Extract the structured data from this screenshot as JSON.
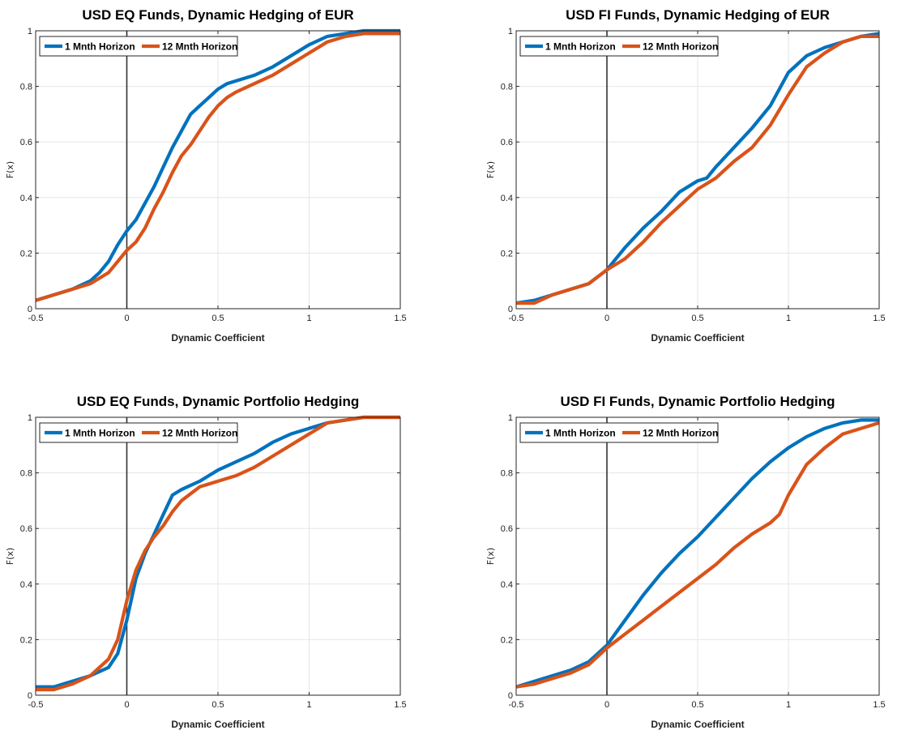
{
  "chart_data": [
    {
      "type": "line",
      "title": "USD EQ Funds, Dynamic Hedging of EUR",
      "xlabel": "Dynamic Coefficient",
      "ylabel": "F(x)",
      "xlim": [
        -0.5,
        1.5
      ],
      "ylim": [
        0,
        1
      ],
      "xticks": [
        "-0.5",
        "0",
        "0.5",
        "1",
        "1.5"
      ],
      "yticks": [
        "0",
        "0.2",
        "0.4",
        "0.6",
        "0.8",
        "1"
      ],
      "grid": true,
      "legend_position": "top-left",
      "reference_line_x": 0,
      "series": [
        {
          "name": "1 Mnth Horizon",
          "color": "#0072BD",
          "x": [
            -0.5,
            -0.4,
            -0.3,
            -0.2,
            -0.15,
            -0.1,
            -0.05,
            0,
            0.05,
            0.1,
            0.15,
            0.2,
            0.25,
            0.3,
            0.35,
            0.4,
            0.45,
            0.5,
            0.55,
            0.6,
            0.7,
            0.8,
            0.9,
            1.0,
            1.1,
            1.2,
            1.3,
            1.4,
            1.5
          ],
          "y": [
            0.03,
            0.05,
            0.07,
            0.1,
            0.13,
            0.17,
            0.23,
            0.28,
            0.32,
            0.38,
            0.44,
            0.51,
            0.58,
            0.64,
            0.7,
            0.73,
            0.76,
            0.79,
            0.81,
            0.82,
            0.84,
            0.87,
            0.91,
            0.95,
            0.98,
            0.99,
            1.0,
            1.0,
            1.0
          ]
        },
        {
          "name": "12 Mnth Horizon",
          "color": "#D95319",
          "x": [
            -0.5,
            -0.4,
            -0.3,
            -0.2,
            -0.15,
            -0.1,
            -0.05,
            0,
            0.05,
            0.1,
            0.15,
            0.2,
            0.25,
            0.3,
            0.35,
            0.4,
            0.45,
            0.5,
            0.55,
            0.6,
            0.7,
            0.8,
            0.9,
            1.0,
            1.1,
            1.2,
            1.3,
            1.4,
            1.5
          ],
          "y": [
            0.03,
            0.05,
            0.07,
            0.09,
            0.11,
            0.13,
            0.17,
            0.21,
            0.24,
            0.29,
            0.36,
            0.42,
            0.49,
            0.55,
            0.59,
            0.64,
            0.69,
            0.73,
            0.76,
            0.78,
            0.81,
            0.84,
            0.88,
            0.92,
            0.96,
            0.98,
            0.99,
            0.99,
            0.99
          ]
        }
      ]
    },
    {
      "type": "line",
      "title": "USD FI Funds, Dynamic Hedging of EUR",
      "xlabel": "Dynamic Coefficient",
      "ylabel": "F(x)",
      "xlim": [
        -0.5,
        1.5
      ],
      "ylim": [
        0,
        1
      ],
      "xticks": [
        "-0.5",
        "0",
        "0.5",
        "1",
        "1.5"
      ],
      "yticks": [
        "0",
        "0.2",
        "0.4",
        "0.6",
        "0.8",
        "1"
      ],
      "grid": true,
      "legend_position": "top-left",
      "reference_line_x": 0,
      "series": [
        {
          "name": "1 Mnth Horizon",
          "color": "#0072BD",
          "x": [
            -0.5,
            -0.4,
            -0.3,
            -0.2,
            -0.1,
            0,
            0.1,
            0.2,
            0.3,
            0.4,
            0.5,
            0.55,
            0.6,
            0.7,
            0.8,
            0.9,
            0.95,
            1.0,
            1.1,
            1.2,
            1.3,
            1.4,
            1.5
          ],
          "y": [
            0.02,
            0.03,
            0.05,
            0.07,
            0.09,
            0.14,
            0.22,
            0.29,
            0.35,
            0.42,
            0.46,
            0.47,
            0.51,
            0.58,
            0.65,
            0.73,
            0.79,
            0.85,
            0.91,
            0.94,
            0.96,
            0.98,
            0.99
          ]
        },
        {
          "name": "12 Mnth Horizon",
          "color": "#D95319",
          "x": [
            -0.5,
            -0.4,
            -0.3,
            -0.2,
            -0.1,
            0,
            0.1,
            0.2,
            0.3,
            0.4,
            0.5,
            0.6,
            0.7,
            0.8,
            0.9,
            1.0,
            1.1,
            1.2,
            1.3,
            1.4,
            1.5
          ],
          "y": [
            0.02,
            0.02,
            0.05,
            0.07,
            0.09,
            0.14,
            0.18,
            0.24,
            0.31,
            0.37,
            0.43,
            0.47,
            0.53,
            0.58,
            0.66,
            0.77,
            0.87,
            0.92,
            0.96,
            0.98,
            0.98
          ]
        }
      ]
    },
    {
      "type": "line",
      "title": "USD EQ Funds, Dynamic Portfolio Hedging",
      "xlabel": "Dynamic Coefficient",
      "ylabel": "F(x)",
      "xlim": [
        -0.5,
        1.5
      ],
      "ylim": [
        0,
        1
      ],
      "xticks": [
        "-0.5",
        "0",
        "0.5",
        "1",
        "1.5"
      ],
      "yticks": [
        "0",
        "0.2",
        "0.4",
        "0.6",
        "0.8",
        "1"
      ],
      "grid": true,
      "legend_position": "top-left",
      "reference_line_x": 0,
      "series": [
        {
          "name": "1 Mnth Horizon",
          "color": "#0072BD",
          "x": [
            -0.5,
            -0.4,
            -0.3,
            -0.2,
            -0.1,
            -0.05,
            0,
            0.05,
            0.1,
            0.15,
            0.2,
            0.25,
            0.3,
            0.4,
            0.5,
            0.6,
            0.7,
            0.8,
            0.9,
            1.0,
            1.1,
            1.2,
            1.3,
            1.4,
            1.5
          ],
          "y": [
            0.03,
            0.03,
            0.05,
            0.07,
            0.1,
            0.15,
            0.27,
            0.42,
            0.51,
            0.58,
            0.65,
            0.72,
            0.74,
            0.77,
            0.81,
            0.84,
            0.87,
            0.91,
            0.94,
            0.96,
            0.98,
            0.99,
            1.0,
            1.0,
            1.0
          ]
        },
        {
          "name": "12 Mnth Horizon",
          "color": "#D95319",
          "x": [
            -0.5,
            -0.4,
            -0.3,
            -0.2,
            -0.15,
            -0.1,
            -0.05,
            0,
            0.05,
            0.1,
            0.15,
            0.2,
            0.25,
            0.3,
            0.4,
            0.5,
            0.6,
            0.7,
            0.8,
            0.9,
            1.0,
            1.1,
            1.2,
            1.3,
            1.4,
            1.5
          ],
          "y": [
            0.02,
            0.02,
            0.04,
            0.07,
            0.1,
            0.13,
            0.2,
            0.34,
            0.45,
            0.52,
            0.57,
            0.61,
            0.66,
            0.7,
            0.75,
            0.77,
            0.79,
            0.82,
            0.86,
            0.9,
            0.94,
            0.98,
            0.99,
            1.0,
            1.0,
            1.0
          ]
        }
      ]
    },
    {
      "type": "line",
      "title": "USD FI Funds, Dynamic Portfolio Hedging",
      "xlabel": "Dynamic Coefficient",
      "ylabel": "F(x)",
      "xlim": [
        -0.5,
        1.5
      ],
      "ylim": [
        0,
        1
      ],
      "xticks": [
        "-0.5",
        "0",
        "0.5",
        "1",
        "1.5"
      ],
      "yticks": [
        "0",
        "0.2",
        "0.4",
        "0.6",
        "0.8",
        "1"
      ],
      "grid": true,
      "legend_position": "top-left",
      "reference_line_x": 0,
      "series": [
        {
          "name": "1 Mnth Horizon",
          "color": "#0072BD",
          "x": [
            -0.5,
            -0.4,
            -0.3,
            -0.2,
            -0.1,
            0,
            0.1,
            0.2,
            0.3,
            0.4,
            0.5,
            0.6,
            0.7,
            0.8,
            0.9,
            1.0,
            1.1,
            1.2,
            1.3,
            1.4,
            1.5
          ],
          "y": [
            0.03,
            0.05,
            0.07,
            0.09,
            0.12,
            0.18,
            0.27,
            0.36,
            0.44,
            0.51,
            0.57,
            0.64,
            0.71,
            0.78,
            0.84,
            0.89,
            0.93,
            0.96,
            0.98,
            0.99,
            0.99
          ]
        },
        {
          "name": "12 Mnth Horizon",
          "color": "#D95319",
          "x": [
            -0.5,
            -0.4,
            -0.3,
            -0.2,
            -0.1,
            0,
            0.1,
            0.2,
            0.3,
            0.4,
            0.5,
            0.6,
            0.7,
            0.8,
            0.9,
            0.95,
            1.0,
            1.1,
            1.2,
            1.3,
            1.4,
            1.5
          ],
          "y": [
            0.03,
            0.04,
            0.06,
            0.08,
            0.11,
            0.17,
            0.22,
            0.27,
            0.32,
            0.37,
            0.42,
            0.47,
            0.53,
            0.58,
            0.62,
            0.65,
            0.72,
            0.83,
            0.89,
            0.94,
            0.96,
            0.98
          ]
        }
      ]
    }
  ]
}
